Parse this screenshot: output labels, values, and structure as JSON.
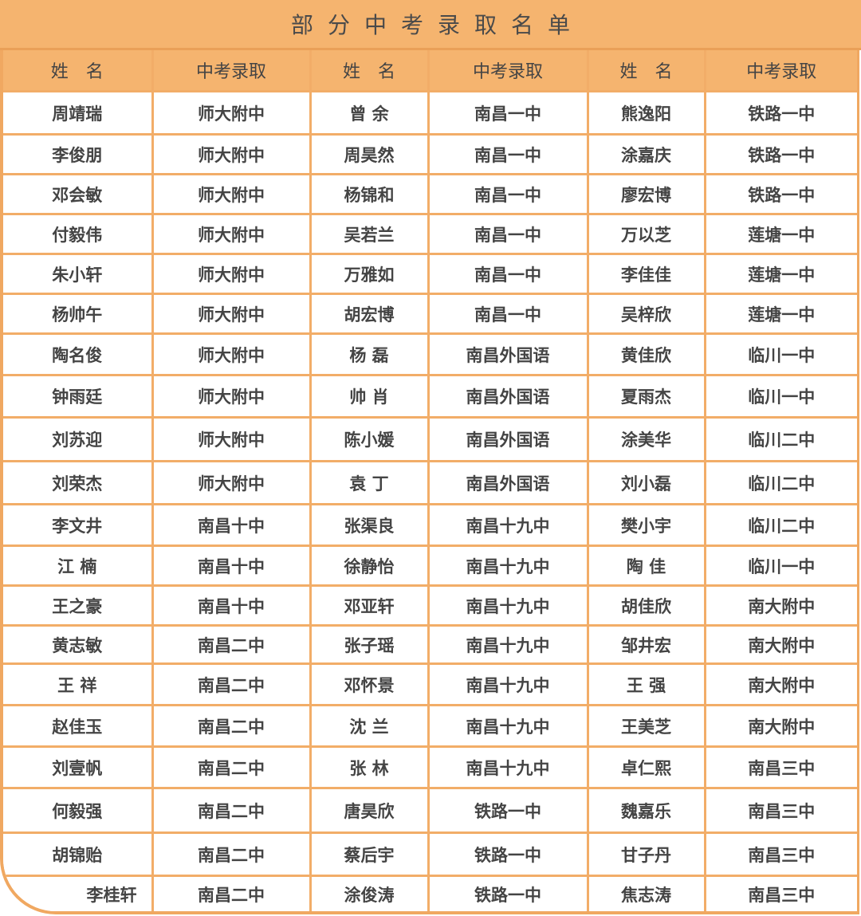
{
  "title": "部分中考录取名单",
  "headers": [
    "姓　名",
    "中考录取",
    "姓　名",
    "中考录取",
    "姓　名",
    "中考录取"
  ],
  "colors": {
    "header_bg": "#f5b46f",
    "border": "#f2ad68",
    "text": "#444444"
  },
  "rows": [
    [
      "周靖瑞",
      "师大附中",
      "曾 余",
      "南昌一中",
      "熊逸阳",
      "铁路一中"
    ],
    [
      "李俊朋",
      "师大附中",
      "周昊然",
      "南昌一中",
      "涂嘉庆",
      "铁路一中"
    ],
    [
      "邓会敏",
      "师大附中",
      "杨锦和",
      "南昌一中",
      "廖宏博",
      "铁路一中"
    ],
    [
      "付毅伟",
      "师大附中",
      "吴若兰",
      "南昌一中",
      "万以芝",
      "莲塘一中"
    ],
    [
      "朱小轩",
      "师大附中",
      "万雅如",
      "南昌一中",
      "李佳佳",
      "莲塘一中"
    ],
    [
      "杨帅午",
      "师大附中",
      "胡宏博",
      "南昌一中",
      "吴梓欣",
      "莲塘一中"
    ],
    [
      "陶名俊",
      "师大附中",
      "杨 磊",
      "南昌外国语",
      "黄佳欣",
      "临川一中"
    ],
    [
      "钟雨廷",
      "师大附中",
      "帅 肖",
      "南昌外国语",
      "夏雨杰",
      "临川一中"
    ],
    [
      "刘苏迎",
      "师大附中",
      "陈小媛",
      "南昌外国语",
      "涂美华",
      "临川二中"
    ],
    [
      "刘荣杰",
      "师大附中",
      "袁 丁",
      "南昌外国语",
      "刘小磊",
      "临川二中"
    ],
    [
      "李文井",
      "南昌十中",
      "张渠良",
      "南昌十九中",
      "樊小宇",
      "临川二中"
    ],
    [
      "江 楠",
      "南昌十中",
      "徐静怡",
      "南昌十九中",
      "陶 佳",
      "临川一中"
    ],
    [
      "王之豪",
      "南昌十中",
      "邓亚轩",
      "南昌十九中",
      "胡佳欣",
      "南大附中"
    ],
    [
      "黄志敏",
      "南昌二中",
      "张子瑶",
      "南昌十九中",
      "邹井宏",
      "南大附中"
    ],
    [
      "王 祥",
      "南昌二中",
      "邓怀景",
      "南昌十九中",
      "王 强",
      "南大附中"
    ],
    [
      "赵佳玉",
      "南昌二中",
      "沈 兰",
      "南昌十九中",
      "王美芝",
      "南大附中"
    ],
    [
      "刘壹帆",
      "南昌二中",
      "张 林",
      "南昌十九中",
      "卓仁熙",
      "南昌三中"
    ],
    [
      "何毅强",
      "南昌二中",
      "唐昊欣",
      "铁路一中",
      "魏嘉乐",
      "南昌三中"
    ],
    [
      "胡锦贻",
      "南昌二中",
      "蔡后宇",
      "铁路一中",
      "甘子丹",
      "南昌三中"
    ],
    [
      "李桂轩",
      "南昌二中",
      "涂俊涛",
      "铁路一中",
      "焦志涛",
      "南昌三中"
    ]
  ]
}
